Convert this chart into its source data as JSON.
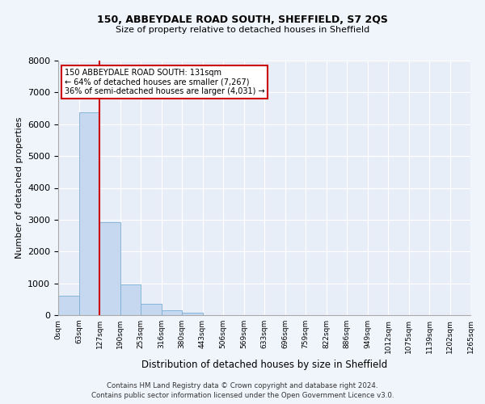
{
  "title": "150, ABBEYDALE ROAD SOUTH, SHEFFIELD, S7 2QS",
  "subtitle": "Size of property relative to detached houses in Sheffield",
  "xlabel": "Distribution of detached houses by size in Sheffield",
  "ylabel": "Number of detached properties",
  "bar_color": "#c5d8ef",
  "bar_edge_color": "#7bafd4",
  "vline_color": "#cc0000",
  "vline_x": 2,
  "tick_labels": [
    "0sqm",
    "63sqm",
    "127sqm",
    "190sqm",
    "253sqm",
    "316sqm",
    "380sqm",
    "443sqm",
    "506sqm",
    "569sqm",
    "633sqm",
    "696sqm",
    "759sqm",
    "822sqm",
    "886sqm",
    "949sqm",
    "1012sqm",
    "1075sqm",
    "1139sqm",
    "1202sqm",
    "1265sqm"
  ],
  "bar_heights": [
    620,
    6380,
    2920,
    970,
    360,
    150,
    70,
    0,
    0,
    0,
    0,
    0,
    0,
    0,
    0,
    0,
    0,
    0,
    0,
    0
  ],
  "ylim": [
    0,
    8000
  ],
  "yticks": [
    0,
    1000,
    2000,
    3000,
    4000,
    5000,
    6000,
    7000,
    8000
  ],
  "annotation_text": "150 ABBEYDALE ROAD SOUTH: 131sqm\n← 64% of detached houses are smaller (7,267)\n36% of semi-detached houses are larger (4,031) →",
  "annotation_box_color": "#ffffff",
  "annotation_border_color": "#cc0000",
  "footer_line1": "Contains HM Land Registry data © Crown copyright and database right 2024.",
  "footer_line2": "Contains public sector information licensed under the Open Government Licence v3.0.",
  "bg_color": "#f0f4fb",
  "axes_bg_color": "#e8eef8"
}
